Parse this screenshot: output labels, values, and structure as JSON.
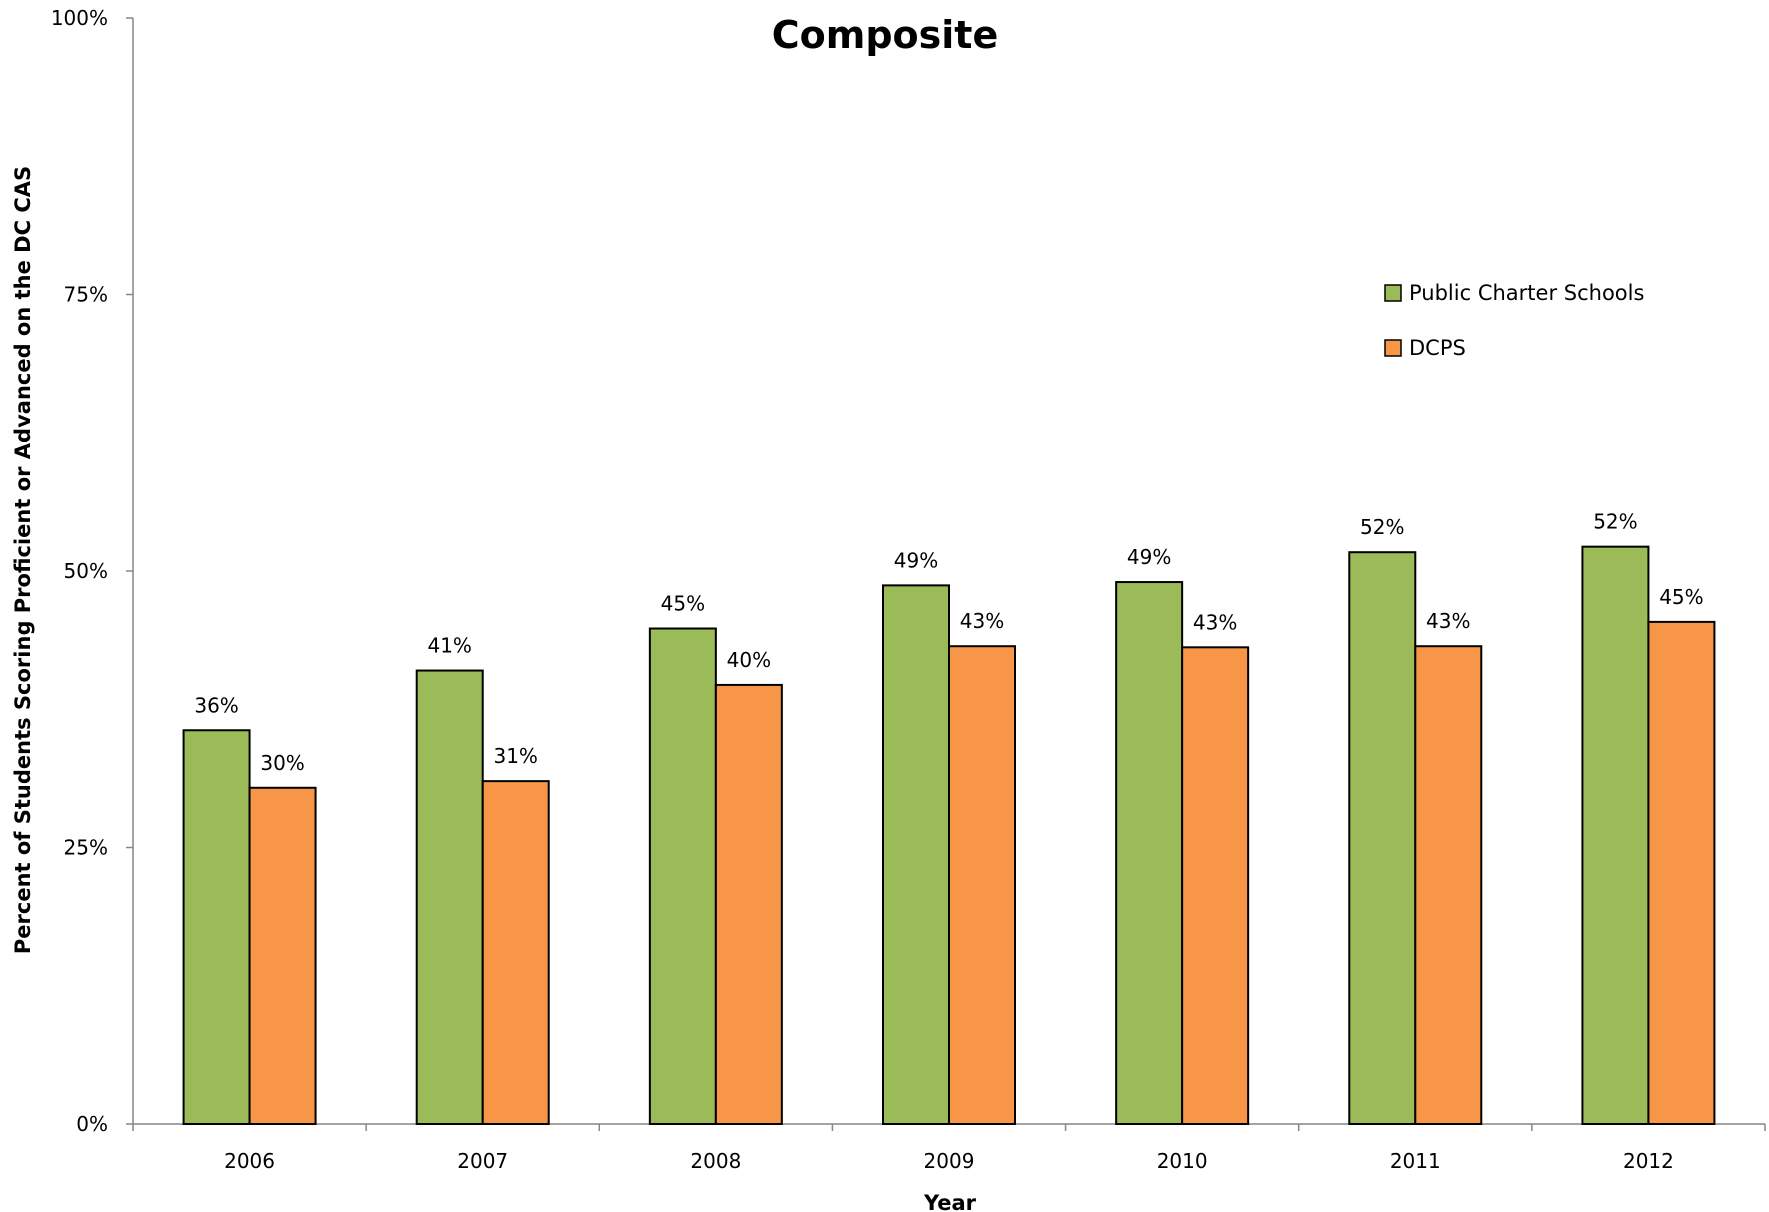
{
  "chart_data": {
    "type": "bar",
    "title": "Composite",
    "xlabel": "Year",
    "ylabel": "Percent of Students Scoring Proficient or Advanced on the DC CAS",
    "categories": [
      "2006",
      "2007",
      "2008",
      "2009",
      "2010",
      "2011",
      "2012"
    ],
    "series": [
      {
        "name": "Public Charter Schools",
        "color": "#9bbb59",
        "values": [
          35.6,
          41.0,
          44.8,
          48.7,
          49.0,
          51.7,
          52.2
        ],
        "labels": [
          "36%",
          "41%",
          "45%",
          "49%",
          "49%",
          "52%",
          "52%"
        ]
      },
      {
        "name": "DCPS",
        "color": "#f79646",
        "values": [
          30.4,
          31.0,
          39.7,
          43.2,
          43.1,
          43.2,
          45.4
        ],
        "labels": [
          "30%",
          "31%",
          "40%",
          "43%",
          "43%",
          "43%",
          "45%"
        ]
      }
    ],
    "ylim": [
      0,
      100
    ],
    "yticks": [
      0,
      25,
      50,
      75,
      100
    ],
    "ytick_labels": [
      "0%",
      "25%",
      "50%",
      "75%",
      "100%"
    ],
    "grid": false,
    "legend_position": "right"
  }
}
